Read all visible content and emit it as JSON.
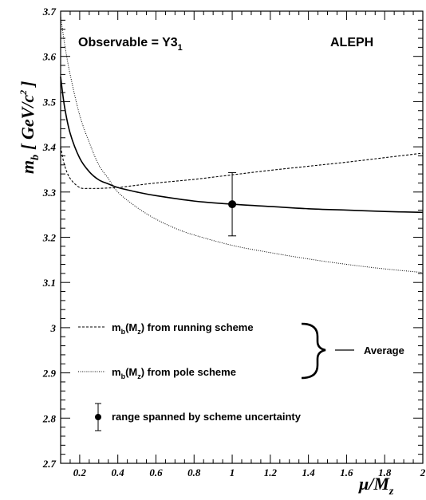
{
  "chart_data": {
    "type": "line",
    "observable_label": "Observable = Y3",
    "observable_sub": "1",
    "experiment_label": "ALEPH",
    "ylabel": "m",
    "ylabel_sub": "b",
    "ylabel_units": "[ GeV/c",
    "ylabel_units_sup": "2",
    "ylabel_close": "]",
    "xlabel": "μ/M",
    "xlabel_sub": "z",
    "xlim": [
      0.1,
      2.0
    ],
    "ylim": [
      2.7,
      3.7
    ],
    "x_ticks": [
      0.2,
      0.4,
      0.6,
      0.8,
      1.0,
      1.2,
      1.4,
      1.6,
      1.8,
      2.0
    ],
    "x_tick_labels": [
      "0.2",
      "0.4",
      "0.6",
      "0.8",
      "1",
      "1.2",
      "1.4",
      "1.6",
      "1.8",
      "2"
    ],
    "y_ticks": [
      2.7,
      2.8,
      2.9,
      3.0,
      3.1,
      3.2,
      3.3,
      3.4,
      3.5,
      3.6,
      3.7
    ],
    "y_tick_labels": [
      "2.7",
      "2.8",
      "2.9",
      "3",
      "3.1",
      "3.2",
      "3.3",
      "3.4",
      "3.5",
      "3.6",
      "3.7"
    ],
    "grid": false,
    "series": [
      {
        "style": "dashed",
        "x": [
          0.1,
          0.12,
          0.15,
          0.2,
          0.25,
          0.3,
          0.35,
          0.4,
          0.5,
          0.6,
          0.8,
          1.0,
          1.2,
          1.4,
          1.6,
          1.8,
          2.0
        ],
        "y": [
          3.4,
          3.36,
          3.33,
          3.31,
          3.308,
          3.308,
          3.309,
          3.31,
          3.315,
          3.32,
          3.328,
          3.338,
          3.348,
          3.357,
          3.366,
          3.376,
          3.386
        ]
      },
      {
        "style": "dotted",
        "x": [
          0.1,
          0.12,
          0.15,
          0.2,
          0.25,
          0.3,
          0.35,
          0.4,
          0.5,
          0.6,
          0.7,
          0.8,
          1.0,
          1.2,
          1.4,
          1.6,
          1.8,
          2.0
        ],
        "y": [
          3.69,
          3.63,
          3.56,
          3.47,
          3.41,
          3.36,
          3.33,
          3.3,
          3.266,
          3.24,
          3.22,
          3.205,
          3.182,
          3.166,
          3.152,
          3.14,
          3.13,
          3.122
        ]
      },
      {
        "style": "solid",
        "x": [
          0.1,
          0.12,
          0.15,
          0.2,
          0.25,
          0.3,
          0.35,
          0.4,
          0.5,
          0.6,
          0.8,
          1.0,
          1.2,
          1.4,
          1.6,
          1.8,
          2.0
        ],
        "y": [
          3.555,
          3.49,
          3.43,
          3.375,
          3.345,
          3.327,
          3.318,
          3.31,
          3.3,
          3.292,
          3.28,
          3.273,
          3.268,
          3.263,
          3.26,
          3.257,
          3.255
        ]
      }
    ],
    "point": {
      "x": 1.0,
      "y": 3.273,
      "err_low": 3.203,
      "err_high": 3.343
    },
    "legend": [
      {
        "style": "dashed",
        "label": "m",
        "sub": "b",
        "rest": "(M",
        "sub2": "z",
        "tail": ") from running scheme"
      },
      {
        "style": "dotted",
        "label": "m",
        "sub": "b",
        "rest": "(M",
        "sub2": "z",
        "tail": ") from pole scheme"
      },
      {
        "style": "point",
        "text": "range spanned by scheme uncertainty"
      }
    ],
    "average_label": "Average",
    "legend_placement": "bottom-left"
  }
}
